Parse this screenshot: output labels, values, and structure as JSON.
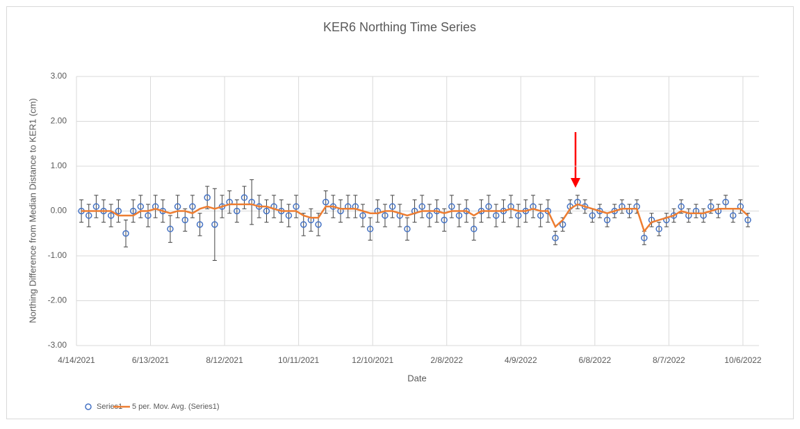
{
  "chart_data": {
    "type": "scatter",
    "title": "KER6 Northing Time Series",
    "xlabel": "Date",
    "ylabel": "Northing Difference from Median Distance to KER1 (cm)",
    "x": [
      "2021-04-18",
      "2021-04-24",
      "2021-04-30",
      "2021-05-06",
      "2021-05-12",
      "2021-05-18",
      "2021-05-24",
      "2021-05-30",
      "2021-06-05",
      "2021-06-11",
      "2021-06-17",
      "2021-06-23",
      "2021-06-29",
      "2021-07-05",
      "2021-07-11",
      "2021-07-17",
      "2021-07-23",
      "2021-07-29",
      "2021-08-04",
      "2021-08-10",
      "2021-08-16",
      "2021-08-22",
      "2021-08-28",
      "2021-09-03",
      "2021-09-09",
      "2021-09-15",
      "2021-09-21",
      "2021-09-27",
      "2021-10-03",
      "2021-10-09",
      "2021-10-15",
      "2021-10-21",
      "2021-10-27",
      "2021-11-02",
      "2021-11-08",
      "2021-11-14",
      "2021-11-20",
      "2021-11-26",
      "2021-12-02",
      "2021-12-08",
      "2021-12-14",
      "2021-12-20",
      "2021-12-26",
      "2022-01-01",
      "2022-01-07",
      "2022-01-13",
      "2022-01-19",
      "2022-01-25",
      "2022-01-31",
      "2022-02-06",
      "2022-02-12",
      "2022-02-18",
      "2022-02-24",
      "2022-03-02",
      "2022-03-08",
      "2022-03-14",
      "2022-03-20",
      "2022-03-26",
      "2022-04-01",
      "2022-04-07",
      "2022-04-13",
      "2022-04-19",
      "2022-04-25",
      "2022-05-01",
      "2022-05-07",
      "2022-05-13",
      "2022-05-19",
      "2022-05-25",
      "2022-05-31",
      "2022-06-06",
      "2022-06-12",
      "2022-06-18",
      "2022-06-24",
      "2022-06-30",
      "2022-07-06",
      "2022-07-12",
      "2022-07-18",
      "2022-07-24",
      "2022-07-30",
      "2022-08-05",
      "2022-08-11",
      "2022-08-17",
      "2022-08-23",
      "2022-08-29",
      "2022-09-04",
      "2022-09-10",
      "2022-09-16",
      "2022-09-22",
      "2022-09-28",
      "2022-10-04",
      "2022-10-10"
    ],
    "series": [
      {
        "name": "Series1",
        "color": "#4472c4",
        "error_color": "#404040",
        "values": [
          0.0,
          -0.1,
          0.1,
          0.0,
          -0.1,
          0.0,
          -0.5,
          0.0,
          0.1,
          -0.1,
          0.1,
          0.0,
          -0.4,
          0.1,
          -0.2,
          0.1,
          -0.3,
          0.3,
          -0.3,
          0.1,
          0.2,
          0.0,
          0.3,
          0.2,
          0.1,
          0.0,
          0.1,
          0.0,
          -0.1,
          0.1,
          -0.3,
          -0.2,
          -0.3,
          0.2,
          0.1,
          0.0,
          0.1,
          0.1,
          -0.1,
          -0.4,
          0.0,
          -0.1,
          0.1,
          -0.1,
          -0.4,
          0.0,
          0.1,
          -0.1,
          0.0,
          -0.2,
          0.1,
          -0.1,
          0.0,
          -0.4,
          0.0,
          0.1,
          -0.1,
          0.0,
          0.1,
          -0.1,
          0.0,
          0.1,
          -0.1,
          0.0,
          -0.6,
          -0.3,
          0.1,
          0.2,
          0.1,
          -0.1,
          0.0,
          -0.2,
          0.0,
          0.1,
          0.0,
          0.1,
          -0.6,
          -0.2,
          -0.4,
          -0.2,
          -0.1,
          0.1,
          -0.1,
          0.0,
          -0.1,
          0.1,
          0.0,
          0.2,
          -0.1,
          0.1,
          -0.2
        ],
        "errors": [
          0.25,
          0.25,
          0.25,
          0.25,
          0.25,
          0.25,
          0.3,
          0.25,
          0.25,
          0.25,
          0.25,
          0.25,
          0.3,
          0.25,
          0.25,
          0.25,
          0.25,
          0.25,
          0.8,
          0.25,
          0.25,
          0.25,
          0.25,
          0.5,
          0.25,
          0.25,
          0.25,
          0.25,
          0.25,
          0.25,
          0.25,
          0.25,
          0.25,
          0.25,
          0.25,
          0.25,
          0.25,
          0.25,
          0.25,
          0.25,
          0.25,
          0.25,
          0.25,
          0.25,
          0.25,
          0.25,
          0.25,
          0.25,
          0.25,
          0.25,
          0.25,
          0.25,
          0.25,
          0.25,
          0.25,
          0.25,
          0.25,
          0.25,
          0.25,
          0.25,
          0.25,
          0.25,
          0.25,
          0.25,
          0.15,
          0.15,
          0.15,
          0.15,
          0.15,
          0.15,
          0.15,
          0.15,
          0.15,
          0.15,
          0.15,
          0.15,
          0.15,
          0.15,
          0.15,
          0.15,
          0.15,
          0.15,
          0.15,
          0.15,
          0.15,
          0.15,
          0.15,
          0.15,
          0.15,
          0.15,
          0.15
        ]
      },
      {
        "name": "5 per. Mov. Avg. (Series1)",
        "color": "#ed7d31",
        "values": [
          0.0,
          0.0,
          0.0,
          0.0,
          0.0,
          -0.1,
          -0.1,
          -0.1,
          0.0,
          0.0,
          0.05,
          0.0,
          -0.05,
          0.0,
          0.0,
          -0.05,
          0.05,
          0.1,
          0.05,
          0.1,
          0.15,
          0.15,
          0.15,
          0.15,
          0.1,
          0.1,
          0.05,
          0.0,
          0.0,
          0.0,
          -0.1,
          -0.15,
          -0.15,
          0.1,
          0.1,
          0.05,
          0.05,
          0.05,
          0.0,
          -0.05,
          -0.05,
          0.0,
          0.0,
          -0.05,
          -0.1,
          -0.05,
          0.0,
          0.0,
          0.0,
          -0.05,
          0.0,
          0.0,
          0.0,
          -0.1,
          0.0,
          0.0,
          0.0,
          0.0,
          0.05,
          0.0,
          0.0,
          0.05,
          0.0,
          0.0,
          -0.35,
          -0.2,
          0.05,
          0.15,
          0.1,
          0.05,
          0.0,
          -0.05,
          0.0,
          0.05,
          0.05,
          0.05,
          -0.45,
          -0.25,
          -0.2,
          -0.15,
          -0.1,
          0.0,
          -0.05,
          -0.05,
          -0.05,
          0.0,
          0.05,
          0.05,
          0.05,
          0.05,
          -0.1
        ]
      }
    ],
    "xlim": [
      "2021-04-14",
      "2022-10-19"
    ],
    "xticks": [
      {
        "value": "2021-04-14",
        "label": "4/14/2021"
      },
      {
        "value": "2021-06-13",
        "label": "6/13/2021"
      },
      {
        "value": "2021-08-12",
        "label": "8/12/2021"
      },
      {
        "value": "2021-10-11",
        "label": "10/11/2021"
      },
      {
        "value": "2021-12-10",
        "label": "12/10/2021"
      },
      {
        "value": "2022-02-08",
        "label": "2/8/2022"
      },
      {
        "value": "2022-04-09",
        "label": "4/9/2022"
      },
      {
        "value": "2022-06-08",
        "label": "6/8/2022"
      },
      {
        "value": "2022-08-07",
        "label": "8/7/2022"
      },
      {
        "value": "2022-10-06",
        "label": "10/6/2022"
      }
    ],
    "ylim": [
      -3,
      3
    ],
    "yticks": [
      {
        "value": -3,
        "label": "-3.00"
      },
      {
        "value": -2,
        "label": "-2.00"
      },
      {
        "value": -1,
        "label": "-1.00"
      },
      {
        "value": 0,
        "label": "0.00"
      },
      {
        "value": 1,
        "label": "1.00"
      },
      {
        "value": 2,
        "label": "2.00"
      },
      {
        "value": 3,
        "label": "3.00"
      }
    ],
    "grid": true,
    "legend": "bottom-left"
  }
}
